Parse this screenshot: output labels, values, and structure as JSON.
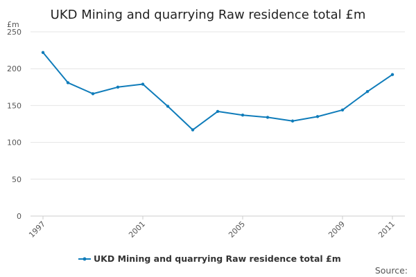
{
  "chart_data": {
    "type": "line",
    "title": "UKD Mining and quarrying Raw residence total £m",
    "y_unit_label": "£m",
    "x": [
      1997,
      1998,
      1999,
      2000,
      2001,
      2002,
      2003,
      2004,
      2005,
      2006,
      2007,
      2008,
      2009,
      2010,
      2011
    ],
    "x_tick_labels": [
      "1997",
      "2001",
      "2005",
      "2009",
      "2011"
    ],
    "y_ticks": [
      0,
      50,
      100,
      150,
      200,
      250
    ],
    "ylim": [
      0,
      250
    ],
    "series": [
      {
        "name": "UKD Mining and quarrying Raw residence total £m",
        "color": "#0f7cba",
        "values": [
          222,
          181,
          166,
          175,
          179,
          149,
          117,
          142,
          137,
          134,
          129,
          135,
          144,
          169,
          192
        ]
      }
    ],
    "grid": true,
    "legend_position": "bottom"
  },
  "source_label": "Source:"
}
